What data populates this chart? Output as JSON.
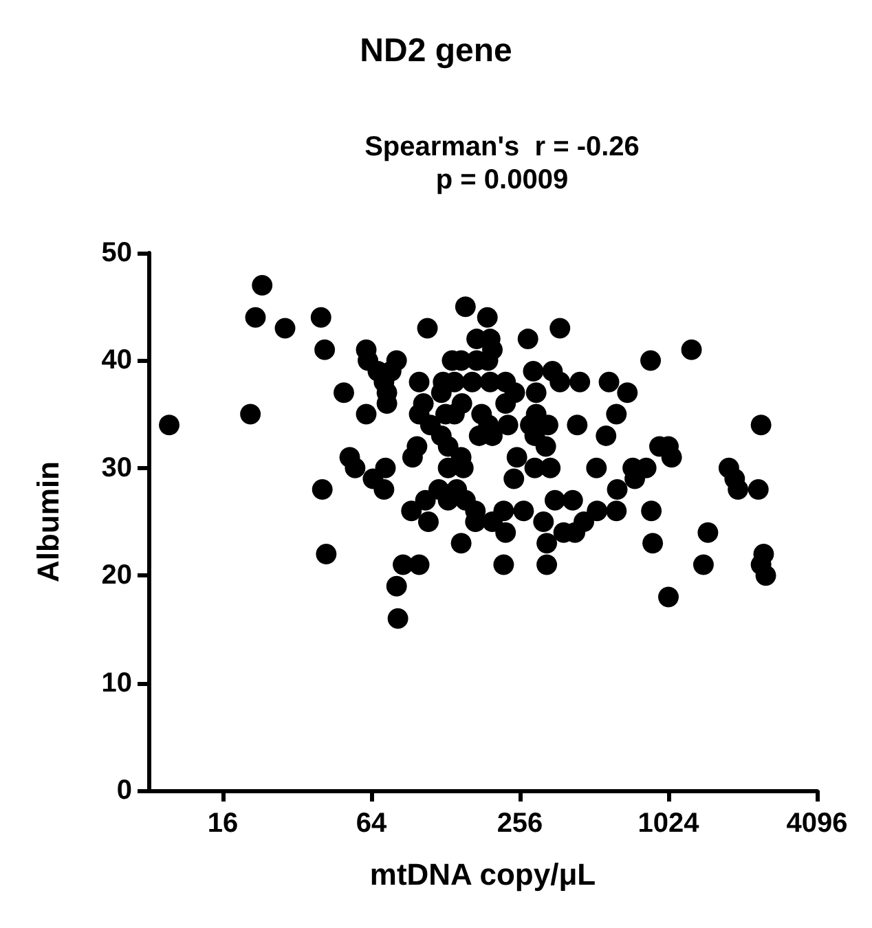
{
  "chart_data": {
    "type": "scatter",
    "title": "ND2 gene",
    "subtitle": "Spearman's  r = -0.26\np = 0.0009",
    "xlabel": "mtDNA copy/μL",
    "ylabel": "Albumin",
    "log": "x",
    "xlim": [
      8,
      4096
    ],
    "xticks": [
      16,
      64,
      256,
      1024,
      4096
    ],
    "ylim": [
      0,
      50
    ],
    "yticks": [
      0,
      10,
      20,
      30,
      40,
      50
    ],
    "grid": false,
    "marker": "circle",
    "series": [
      {
        "color": "#000000",
        "x": [
          9.7,
          23.1,
          21.7,
          28.6,
          20.7,
          40,
          41.4,
          49.5,
          52.3,
          55,
          40.5,
          42,
          61,
          62,
          61,
          65,
          154,
          189,
          108,
          372,
          276,
          171,
          194,
          198,
          81,
          136,
          148,
          171,
          190,
          68,
          77,
          290,
          347,
          372,
          448,
          100,
          125,
          139,
          164,
          194,
          224,
          244,
          72,
          74,
          74,
          298,
          104,
          149,
          123,
          224,
          100,
          111,
          128,
          139,
          179,
          191,
          175,
          198,
          229,
          282,
          298,
          333,
          437,
          326,
          294,
          123,
          131,
          98,
          94,
          249,
          148,
          131,
          151,
          294,
          340,
          73,
          72,
          523,
          242,
          120,
          142,
          106,
          131,
          154,
          93,
          109,
          169,
          169,
          198,
          220,
          224,
          265,
          319,
          355,
          419,
          385,
          428,
          465,
          329,
          526,
          148,
          86,
          100,
          220,
          329,
          81,
          82,
          588,
          698,
          630,
          572,
          867,
          1270,
          2430,
          734,
          832,
          748,
          942,
          1024,
          1055,
          635,
          630,
          873,
          884,
          1024,
          1480,
          1420,
          1800,
          1900,
          1960,
          2370,
          2490,
          2430,
          2540
        ],
        "values": [
          34,
          47,
          44,
          43,
          35,
          44,
          41,
          37,
          31,
          30,
          28,
          22,
          41,
          40,
          35,
          29,
          45,
          44,
          43,
          43,
          42,
          42,
          42,
          41,
          40,
          40,
          40,
          40,
          40,
          39,
          39,
          39,
          39,
          38,
          38,
          38,
          38,
          38,
          38,
          38,
          38,
          37,
          38,
          37,
          36,
          37,
          36,
          36,
          37,
          36,
          35,
          34,
          35,
          35,
          35,
          34,
          33,
          33,
          34,
          34,
          35,
          34,
          34,
          32,
          33,
          33,
          32,
          32,
          31,
          31,
          31,
          30,
          30,
          30,
          30,
          30,
          28,
          30,
          29,
          28,
          28,
          27,
          27,
          27,
          26,
          25,
          26,
          25,
          25,
          26,
          24,
          26,
          25,
          27,
          27,
          24,
          24,
          25,
          23,
          26,
          23,
          21,
          21,
          21,
          21,
          19,
          16,
          38,
          37,
          35,
          33,
          40,
          41,
          34,
          30,
          30,
          29,
          32,
          32,
          31,
          28,
          26,
          26,
          23,
          18,
          24,
          21,
          30,
          29,
          28,
          28,
          22,
          21,
          20
        ]
      }
    ]
  }
}
